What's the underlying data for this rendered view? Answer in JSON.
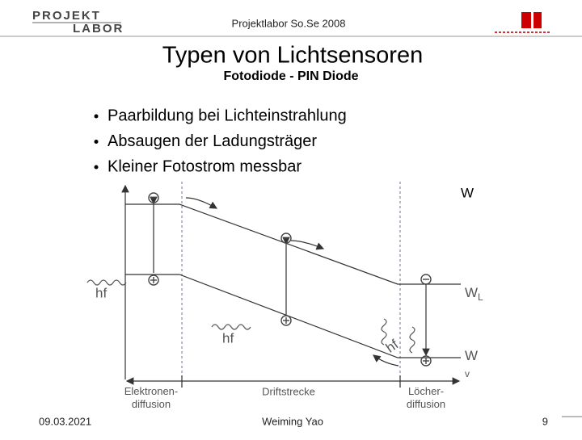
{
  "header": {
    "logo": [
      "PROJEKT",
      "LABOR"
    ],
    "course": "Projektlabor So.Se 2008"
  },
  "title": "Typen von Lichtsensoren",
  "subtitle": "Fotodiode - PIN Diode",
  "bullets": [
    "Paarbildung bei Lichteinstrahlung",
    "Absaugen der Ladungsträger",
    "Kleiner Fotostrom messbar"
  ],
  "diagram": {
    "energy_axis": "W",
    "conduction_band": {
      "symbol": "W",
      "subscript": "L"
    },
    "valence_band": {
      "symbol": "W",
      "subscript": "v"
    },
    "photon": "hf",
    "regions": [
      [
        "Elektronen-",
        "diffusion"
      ],
      [
        "Driftstrecke"
      ],
      [
        "Löcher-",
        "diffusion"
      ]
    ]
  },
  "footer": {
    "date": "09.03.2021",
    "author": "Weiming Yao",
    "page": "9"
  }
}
